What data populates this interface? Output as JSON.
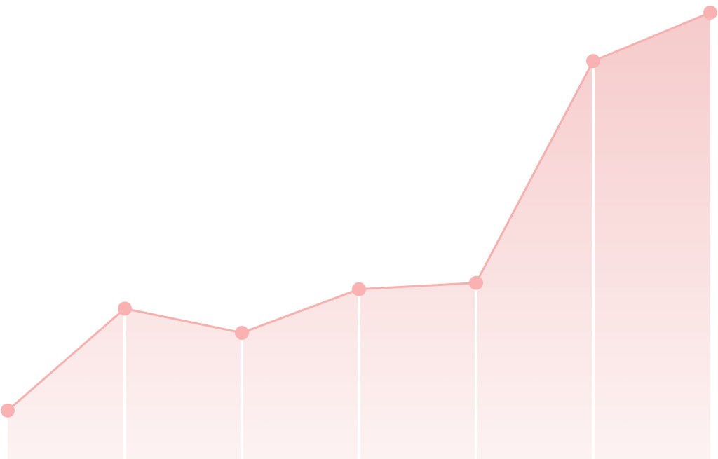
{
  "chart_data": {
    "type": "area",
    "title": "",
    "xlabel": "",
    "ylabel": "",
    "x": [
      1,
      2,
      3,
      4,
      5,
      6,
      7
    ],
    "series": [
      {
        "values": [
          10,
          31,
          26,
          35,
          36.3,
          82,
          92
        ]
      }
    ],
    "xlim": [
      1,
      7
    ],
    "ylim": [
      0,
      93
    ],
    "grid": false,
    "legend": "none",
    "colors": {
      "line": "#f6b0ae",
      "marker": "#f9b1b1",
      "fill_top": "#f6caca",
      "fill_bottom": "#fdf2f2",
      "divider": "#ffffff",
      "background": "#ffffff"
    }
  }
}
